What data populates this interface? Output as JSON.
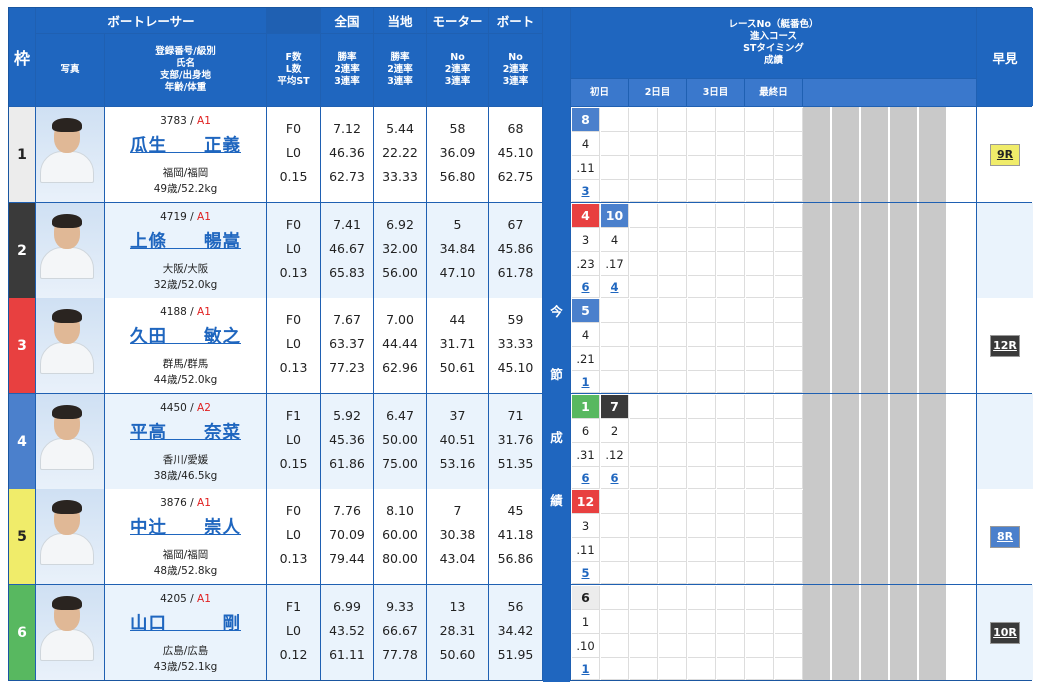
{
  "header": {
    "frame": "枠",
    "boat_racer": "ボートレーサー",
    "photo": "写真",
    "info_lines": [
      "登録番号/級別",
      "氏名",
      "支部/出身地",
      "年齢/体重"
    ],
    "fl_lines": [
      "F数",
      "L数",
      "平均ST"
    ],
    "zenkoku": "全国",
    "zenkoku_lines": [
      "勝率",
      "2連率",
      "3連率"
    ],
    "touchi": "当地",
    "touchi_lines": [
      "勝率",
      "2連率",
      "3連率"
    ],
    "motor": "モーター",
    "motor_lines": [
      "No",
      "2連率",
      "3連率"
    ],
    "boat": "ボート",
    "boat_lines": [
      "No",
      "2連率",
      "3連率"
    ],
    "current_lines": [
      "今",
      "節",
      "成",
      "績"
    ],
    "race_lines": [
      "レースNo（艇番色）",
      "進入コース",
      "STタイミング",
      "成績"
    ],
    "days": [
      "初日",
      "2日目",
      "3日目",
      "最終日"
    ],
    "hayami": "早見"
  },
  "racers": [
    {
      "frame": "1",
      "frame_color": "#ececec",
      "frame_text": "#222",
      "reg": "3783",
      "cls": "A1",
      "name": "瓜生　　正義",
      "area": "福岡/福岡",
      "age_weight": "49歳/52.2kg",
      "fl": [
        "F0",
        "L0",
        "0.15"
      ],
      "zenkoku": [
        "7.12",
        "46.36",
        "62.73"
      ],
      "touchi": [
        "5.44",
        "22.22",
        "33.33"
      ],
      "motor": [
        "58",
        "36.09",
        "56.80"
      ],
      "boat": [
        "68",
        "45.10",
        "62.75"
      ],
      "results": [
        {
          "race": "8",
          "color": "#4b80cc",
          "course": "4",
          "st": ".11",
          "rank": "3"
        }
      ],
      "hayami": "9R",
      "hayami_bg": "#f0ec6a",
      "hayami_fg": "#222"
    },
    {
      "frame": "2",
      "frame_color": "#3a3a3a",
      "frame_text": "#fff",
      "reg": "4719",
      "cls": "A1",
      "name": "上條　　暢嵩",
      "area": "大阪/大阪",
      "age_weight": "32歳/52.0kg",
      "fl": [
        "F0",
        "L0",
        "0.13"
      ],
      "zenkoku": [
        "7.41",
        "46.67",
        "65.83"
      ],
      "touchi": [
        "6.92",
        "32.00",
        "56.00"
      ],
      "motor": [
        "5",
        "34.84",
        "47.10"
      ],
      "boat": [
        "67",
        "45.86",
        "61.78"
      ],
      "results": [
        {
          "race": "4",
          "color": "#e84040",
          "course": "3",
          "st": ".23",
          "rank": "6"
        },
        {
          "race": "10",
          "color": "#4b80cc",
          "course": "4",
          "st": ".17",
          "rank": "4"
        }
      ],
      "hayami": "",
      "hayami_bg": "",
      "hayami_fg": ""
    },
    {
      "frame": "3",
      "frame_color": "#e84040",
      "frame_text": "#fff",
      "reg": "4188",
      "cls": "A1",
      "name": "久田　　敏之",
      "area": "群馬/群馬",
      "age_weight": "44歳/52.0kg",
      "fl": [
        "F0",
        "L0",
        "0.13"
      ],
      "zenkoku": [
        "7.67",
        "63.37",
        "77.23"
      ],
      "touchi": [
        "7.00",
        "44.44",
        "62.96"
      ],
      "motor": [
        "44",
        "31.71",
        "50.61"
      ],
      "boat": [
        "59",
        "33.33",
        "45.10"
      ],
      "results": [
        {
          "race": "5",
          "color": "#4b80cc",
          "course": "4",
          "st": ".21",
          "rank": "1"
        }
      ],
      "hayami": "12R",
      "hayami_bg": "#3a3a3a",
      "hayami_fg": "#fff"
    },
    {
      "frame": "4",
      "frame_color": "#4b80cc",
      "frame_text": "#fff",
      "reg": "4450",
      "cls": "A2",
      "name": "平高　　奈菜",
      "area": "香川/愛媛",
      "age_weight": "38歳/46.5kg",
      "fl": [
        "F1",
        "L0",
        "0.15"
      ],
      "zenkoku": [
        "5.92",
        "45.36",
        "61.86"
      ],
      "touchi": [
        "6.47",
        "50.00",
        "75.00"
      ],
      "motor": [
        "37",
        "40.51",
        "53.16"
      ],
      "boat": [
        "71",
        "31.76",
        "51.35"
      ],
      "results": [
        {
          "race": "1",
          "color": "#58b860",
          "course": "6",
          "st": ".31",
          "rank": "6"
        },
        {
          "race": "7",
          "color": "#3a3a3a",
          "course": "2",
          "st": ".12",
          "rank": "6"
        }
      ],
      "hayami": "",
      "hayami_bg": "",
      "hayami_fg": ""
    },
    {
      "frame": "5",
      "frame_color": "#f0ec6a",
      "frame_text": "#222",
      "reg": "3876",
      "cls": "A1",
      "name": "中辻　　崇人",
      "area": "福岡/福岡",
      "age_weight": "48歳/52.8kg",
      "fl": [
        "F0",
        "L0",
        "0.13"
      ],
      "zenkoku": [
        "7.76",
        "70.09",
        "79.44"
      ],
      "touchi": [
        "8.10",
        "60.00",
        "80.00"
      ],
      "motor": [
        "7",
        "30.38",
        "43.04"
      ],
      "boat": [
        "45",
        "41.18",
        "56.86"
      ],
      "results": [
        {
          "race": "12",
          "color": "#e84040",
          "course": "3",
          "st": ".11",
          "rank": "5"
        }
      ],
      "hayami": "8R",
      "hayami_bg": "#4b80cc",
      "hayami_fg": "#fff"
    },
    {
      "frame": "6",
      "frame_color": "#58b860",
      "frame_text": "#fff",
      "reg": "4205",
      "cls": "A1",
      "name": "山口　　　剛",
      "area": "広島/広島",
      "age_weight": "43歳/52.1kg",
      "fl": [
        "F1",
        "L0",
        "0.12"
      ],
      "zenkoku": [
        "6.99",
        "43.52",
        "61.11"
      ],
      "touchi": [
        "9.33",
        "66.67",
        "77.78"
      ],
      "motor": [
        "13",
        "28.31",
        "50.60"
      ],
      "boat": [
        "56",
        "34.42",
        "51.95"
      ],
      "results": [
        {
          "race": "6",
          "color": "#ececec",
          "course": "1",
          "st": ".10",
          "rank": "1"
        }
      ],
      "hayami": "10R",
      "hayami_bg": "#3a3a3a",
      "hayami_fg": "#fff"
    }
  ]
}
